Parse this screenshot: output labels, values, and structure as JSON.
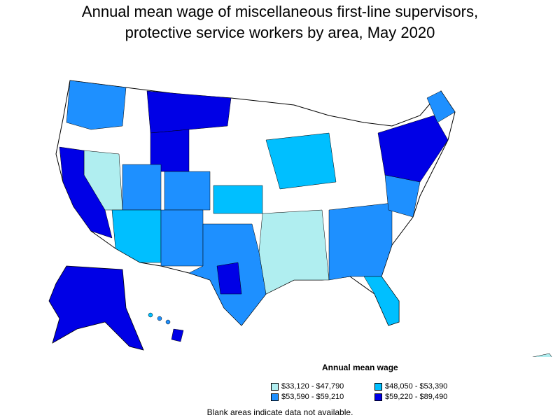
{
  "title_line1": "Annual mean wage of miscellaneous first-line supervisors,",
  "title_line2": "protective service workers by area, May 2020",
  "legend": {
    "title": "Annual mean wage",
    "items": [
      {
        "label": "$33,120 - $47,790",
        "color": "#b0eef0"
      },
      {
        "label": "$48,050 - $53,390",
        "color": "#00bfff"
      },
      {
        "label": "$53,590 - $59,210",
        "color": "#1e90ff"
      },
      {
        "label": "$59,220 - $89,490",
        "color": "#0000e6"
      }
    ]
  },
  "note": "Blank areas indicate data not available."
}
